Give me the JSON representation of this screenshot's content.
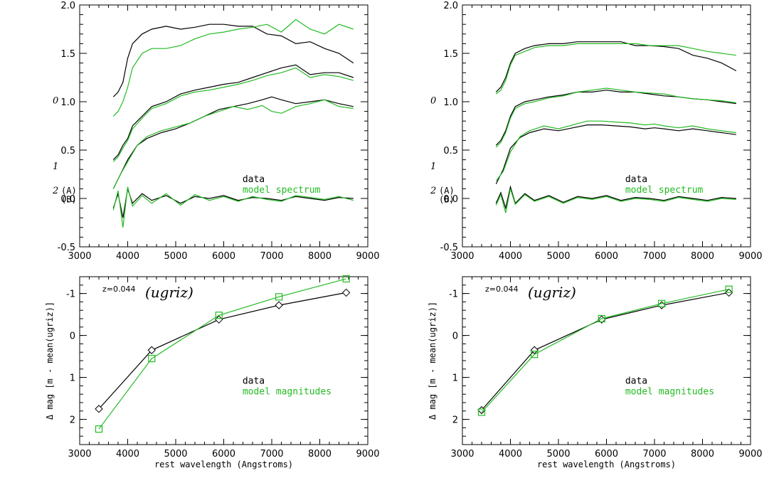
{
  "colors": {
    "data": "#000000",
    "model": "#22bb22"
  },
  "chart_data": [
    {
      "type": "line",
      "panel": "top-left",
      "xlim": [
        3000,
        9000
      ],
      "ylim": [
        -0.5,
        2.0
      ],
      "x_ticks": [
        "3000",
        "4000",
        "5000",
        "6000",
        "7000",
        "8000",
        "9000"
      ],
      "y_ticks": [
        "-0.5",
        "0.0",
        "0.5",
        "1.0",
        "1.5",
        "2.0"
      ],
      "legend": {
        "data": "data",
        "model": "model spectrum",
        "position": "middle-right"
      },
      "labels": {
        "l0": "0",
        "l1": "1",
        "l2": "2",
        "la": "(A)",
        "lb": "(B)"
      },
      "series": [
        {
          "name": "data",
          "role": "data",
          "x": [
            3700,
            3800,
            3900,
            4000,
            4100,
            4300,
            4500,
            4800,
            5100,
            5400,
            5700,
            6000,
            6300,
            6600,
            6900,
            7200,
            7500,
            7800,
            8100,
            8400,
            8700
          ],
          "y": [
            1.05,
            1.1,
            1.2,
            1.45,
            1.6,
            1.7,
            1.75,
            1.78,
            1.75,
            1.77,
            1.8,
            1.8,
            1.78,
            1.78,
            1.7,
            1.68,
            1.6,
            1.62,
            1.55,
            1.5,
            1.4
          ]
        },
        {
          "name": "model spectrum",
          "role": "model",
          "x": [
            3700,
            3800,
            3900,
            4000,
            4100,
            4300,
            4500,
            4800,
            5100,
            5400,
            5700,
            6000,
            6300,
            6600,
            6900,
            7200,
            7500,
            7800,
            8100,
            8400,
            8700
          ],
          "y": [
            0.85,
            0.9,
            1.0,
            1.15,
            1.35,
            1.5,
            1.55,
            1.55,
            1.58,
            1.65,
            1.7,
            1.72,
            1.75,
            1.77,
            1.8,
            1.72,
            1.85,
            1.75,
            1.7,
            1.8,
            1.75
          ]
        },
        {
          "name": "data",
          "role": "data",
          "x": [
            3700,
            3800,
            3900,
            4000,
            4100,
            4300,
            4500,
            4800,
            5100,
            5400,
            5700,
            6000,
            6300,
            6600,
            6900,
            7200,
            7500,
            7800,
            8100,
            8400,
            8700
          ],
          "y": [
            0.4,
            0.45,
            0.55,
            0.62,
            0.75,
            0.85,
            0.95,
            1.0,
            1.08,
            1.12,
            1.15,
            1.18,
            1.2,
            1.25,
            1.3,
            1.35,
            1.38,
            1.28,
            1.3,
            1.3,
            1.25
          ]
        },
        {
          "name": "model spectrum",
          "role": "model",
          "x": [
            3700,
            3800,
            3900,
            4000,
            4100,
            4300,
            4500,
            4800,
            5100,
            5400,
            5700,
            6000,
            6300,
            6600,
            6900,
            7200,
            7500,
            7800,
            8100,
            8400,
            8700
          ],
          "y": [
            0.38,
            0.43,
            0.52,
            0.6,
            0.72,
            0.83,
            0.93,
            0.98,
            1.06,
            1.1,
            1.12,
            1.15,
            1.18,
            1.22,
            1.27,
            1.3,
            1.35,
            1.25,
            1.28,
            1.26,
            1.22
          ]
        },
        {
          "name": "data",
          "role": "data",
          "x": [
            3700,
            3850,
            4000,
            4200,
            4400,
            4700,
            5000,
            5300,
            5600,
            5900,
            6200,
            6500,
            6800,
            7000,
            7200,
            7500,
            7800,
            8100,
            8400,
            8700
          ],
          "y": [
            0.1,
            0.25,
            0.4,
            0.55,
            0.62,
            0.68,
            0.72,
            0.78,
            0.85,
            0.92,
            0.95,
            0.98,
            1.02,
            1.05,
            1.02,
            0.98,
            1.0,
            1.02,
            0.98,
            0.95
          ]
        },
        {
          "name": "model spectrum",
          "role": "model",
          "x": [
            3700,
            3850,
            4000,
            4200,
            4400,
            4700,
            5000,
            5300,
            5600,
            5900,
            6200,
            6500,
            6800,
            7000,
            7200,
            7500,
            7800,
            8100,
            8400,
            8700
          ],
          "y": [
            0.1,
            0.25,
            0.38,
            0.55,
            0.64,
            0.7,
            0.74,
            0.78,
            0.85,
            0.9,
            0.95,
            0.92,
            0.96,
            0.9,
            0.88,
            0.95,
            0.98,
            1.02,
            0.95,
            0.93
          ]
        },
        {
          "name": "data",
          "role": "data",
          "x": [
            3700,
            3800,
            3900,
            4000,
            4100,
            4300,
            4500,
            4800,
            5100,
            5400,
            5700,
            6000,
            6300,
            6600,
            6900,
            7200,
            7500,
            7800,
            8100,
            8400,
            8700
          ],
          "y": [
            -0.1,
            0.05,
            -0.2,
            0.1,
            -0.05,
            0.05,
            -0.02,
            0.03,
            -0.05,
            0.02,
            0.0,
            0.03,
            -0.02,
            0.01,
            0.0,
            -0.02,
            0.02,
            0.0,
            -0.02,
            0.01,
            0.0
          ]
        },
        {
          "name": "model spectrum",
          "role": "model",
          "x": [
            3700,
            3800,
            3900,
            4000,
            4100,
            4300,
            4500,
            4800,
            5100,
            5400,
            5700,
            6000,
            6300,
            6600,
            6900,
            7200,
            7500,
            7800,
            8100,
            8400,
            8700
          ],
          "y": [
            -0.12,
            0.08,
            -0.3,
            0.12,
            -0.08,
            0.03,
            -0.05,
            0.05,
            -0.07,
            0.04,
            -0.02,
            0.02,
            -0.03,
            0.02,
            -0.01,
            -0.03,
            0.03,
            0.01,
            -0.01,
            0.02,
            -0.02
          ]
        }
      ]
    },
    {
      "type": "line",
      "panel": "top-right",
      "xlim": [
        3000,
        9000
      ],
      "ylim": [
        -0.5,
        2.0
      ],
      "x_ticks": [
        "3000",
        "4000",
        "5000",
        "6000",
        "7000",
        "8000",
        "9000"
      ],
      "y_ticks": [
        "-0.5",
        "0.0",
        "0.5",
        "1.0",
        "1.5",
        "2.0"
      ],
      "legend": {
        "data": "data",
        "model": "model spectrum",
        "position": "middle-right"
      },
      "labels": {
        "l0": "0",
        "l1": "1",
        "l2": "2",
        "la": "(A)",
        "lb": "(B)"
      },
      "series": [
        {
          "name": "data",
          "role": "data",
          "x": [
            3700,
            3800,
            3900,
            4000,
            4100,
            4300,
            4500,
            4800,
            5100,
            5400,
            5700,
            6000,
            6300,
            6600,
            6900,
            7200,
            7500,
            7800,
            8100,
            8400,
            8700
          ],
          "y": [
            1.1,
            1.15,
            1.25,
            1.4,
            1.5,
            1.55,
            1.58,
            1.6,
            1.6,
            1.62,
            1.62,
            1.62,
            1.62,
            1.58,
            1.58,
            1.57,
            1.55,
            1.48,
            1.45,
            1.4,
            1.32
          ]
        },
        {
          "name": "model spectrum",
          "role": "model",
          "x": [
            3700,
            3800,
            3900,
            4000,
            4100,
            4300,
            4500,
            4800,
            5100,
            5400,
            5700,
            6000,
            6300,
            6600,
            6900,
            7200,
            7500,
            7800,
            8100,
            8400,
            8700
          ],
          "y": [
            1.08,
            1.12,
            1.22,
            1.38,
            1.48,
            1.52,
            1.56,
            1.58,
            1.58,
            1.6,
            1.6,
            1.6,
            1.6,
            1.6,
            1.58,
            1.58,
            1.58,
            1.55,
            1.52,
            1.5,
            1.48
          ]
        },
        {
          "name": "data",
          "role": "data",
          "x": [
            3700,
            3800,
            3900,
            4000,
            4100,
            4300,
            4500,
            4800,
            5100,
            5400,
            5700,
            6000,
            6300,
            6600,
            6900,
            7200,
            7500,
            7800,
            8100,
            8400,
            8700
          ],
          "y": [
            0.55,
            0.6,
            0.7,
            0.85,
            0.95,
            1.0,
            1.02,
            1.05,
            1.07,
            1.1,
            1.1,
            1.12,
            1.1,
            1.1,
            1.08,
            1.06,
            1.05,
            1.03,
            1.02,
            1.0,
            0.98
          ]
        },
        {
          "name": "model spectrum",
          "role": "model",
          "x": [
            3700,
            3800,
            3900,
            4000,
            4100,
            4300,
            4500,
            4800,
            5100,
            5400,
            5700,
            6000,
            6300,
            6600,
            6900,
            7200,
            7500,
            7800,
            8100,
            8400,
            8700
          ],
          "y": [
            0.53,
            0.58,
            0.68,
            0.83,
            0.93,
            0.98,
            1.0,
            1.04,
            1.06,
            1.1,
            1.12,
            1.14,
            1.12,
            1.1,
            1.09,
            1.08,
            1.05,
            1.03,
            1.02,
            1.01,
            0.99
          ]
        },
        {
          "name": "data",
          "role": "data",
          "x": [
            3700,
            3850,
            4000,
            4200,
            4400,
            4700,
            5000,
            5300,
            5600,
            5900,
            6200,
            6500,
            6800,
            7000,
            7200,
            7500,
            7800,
            8100,
            8400,
            8700
          ],
          "y": [
            0.15,
            0.3,
            0.52,
            0.63,
            0.68,
            0.72,
            0.7,
            0.73,
            0.76,
            0.76,
            0.75,
            0.74,
            0.72,
            0.73,
            0.72,
            0.7,
            0.72,
            0.7,
            0.68,
            0.66
          ]
        },
        {
          "name": "model spectrum",
          "role": "model",
          "x": [
            3700,
            3850,
            4000,
            4200,
            4400,
            4700,
            5000,
            5300,
            5600,
            5900,
            6200,
            6500,
            6800,
            7000,
            7200,
            7500,
            7800,
            8100,
            8400,
            8700
          ],
          "y": [
            0.18,
            0.28,
            0.48,
            0.64,
            0.7,
            0.75,
            0.72,
            0.76,
            0.8,
            0.8,
            0.79,
            0.78,
            0.76,
            0.77,
            0.75,
            0.73,
            0.75,
            0.72,
            0.7,
            0.68
          ]
        },
        {
          "name": "data",
          "role": "data",
          "x": [
            3700,
            3800,
            3900,
            4000,
            4100,
            4300,
            4500,
            4800,
            5100,
            5400,
            5700,
            6000,
            6300,
            6600,
            6900,
            7200,
            7500,
            7800,
            8100,
            8400,
            8700
          ],
          "y": [
            -0.05,
            0.06,
            -0.1,
            0.12,
            -0.05,
            0.05,
            -0.02,
            0.03,
            -0.04,
            0.02,
            0.0,
            0.03,
            -0.02,
            0.01,
            0.0,
            -0.02,
            0.02,
            0.0,
            -0.02,
            0.01,
            0.0
          ]
        },
        {
          "name": "model spectrum",
          "role": "model",
          "x": [
            3700,
            3800,
            3900,
            4000,
            4100,
            4300,
            4500,
            4800,
            5100,
            5400,
            5700,
            6000,
            6300,
            6600,
            6900,
            7200,
            7500,
            7800,
            8100,
            8400,
            8700
          ],
          "y": [
            -0.07,
            0.04,
            -0.15,
            0.1,
            -0.06,
            0.04,
            -0.03,
            0.02,
            -0.05,
            0.01,
            -0.01,
            0.02,
            -0.03,
            0.0,
            -0.01,
            -0.03,
            0.01,
            -0.01,
            -0.03,
            0.0,
            -0.01
          ]
        }
      ]
    },
    {
      "type": "line",
      "panel": "bottom-left",
      "xlim": [
        3000,
        9000
      ],
      "ylim": [
        2.6,
        -1.4
      ],
      "x_ticks": [
        "3000",
        "4000",
        "5000",
        "6000",
        "7000",
        "8000",
        "9000"
      ],
      "y_ticks": [
        "2",
        "1",
        "0",
        "-1"
      ],
      "xlabel": "rest wavelength (Angstroms)",
      "ylabel": "Δ mag [m - mean(ugriz)]",
      "annotation_z": "z=0.044",
      "annotation_ugriz": "(ugriz)",
      "legend": {
        "data": "data",
        "model": "model magnitudes",
        "position": "lower-right"
      },
      "series": [
        {
          "name": "data",
          "role": "data",
          "marker": "diamond",
          "x": [
            3400,
            4500,
            5900,
            7150,
            8550
          ],
          "y": [
            1.75,
            0.35,
            -0.38,
            -0.72,
            -1.02
          ]
        },
        {
          "name": "model magnitudes",
          "role": "model",
          "marker": "square",
          "x": [
            3400,
            4500,
            5900,
            7150,
            8550
          ],
          "y": [
            2.23,
            0.55,
            -0.48,
            -0.92,
            -1.35
          ]
        }
      ]
    },
    {
      "type": "line",
      "panel": "bottom-right",
      "xlim": [
        3000,
        9000
      ],
      "ylim": [
        2.6,
        -1.4
      ],
      "x_ticks": [
        "3000",
        "4000",
        "5000",
        "6000",
        "7000",
        "8000",
        "9000"
      ],
      "y_ticks": [
        "2",
        "1",
        "0",
        "-1"
      ],
      "xlabel": "rest wavelength (Angstroms)",
      "ylabel": "Δ mag [m - mean(ugriz)]",
      "annotation_z": "z=0.044",
      "annotation_ugriz": "(ugriz)",
      "legend": {
        "data": "data",
        "model": "model magnitudes",
        "position": "lower-right"
      },
      "series": [
        {
          "name": "data",
          "role": "data",
          "marker": "diamond",
          "x": [
            3400,
            4500,
            5900,
            7150,
            8550
          ],
          "y": [
            1.78,
            0.35,
            -0.38,
            -0.72,
            -1.02
          ]
        },
        {
          "name": "model magnitudes",
          "role": "model",
          "marker": "square",
          "x": [
            3400,
            4500,
            5900,
            7150,
            8550
          ],
          "y": [
            1.83,
            0.45,
            -0.4,
            -0.76,
            -1.1
          ]
        }
      ]
    }
  ]
}
